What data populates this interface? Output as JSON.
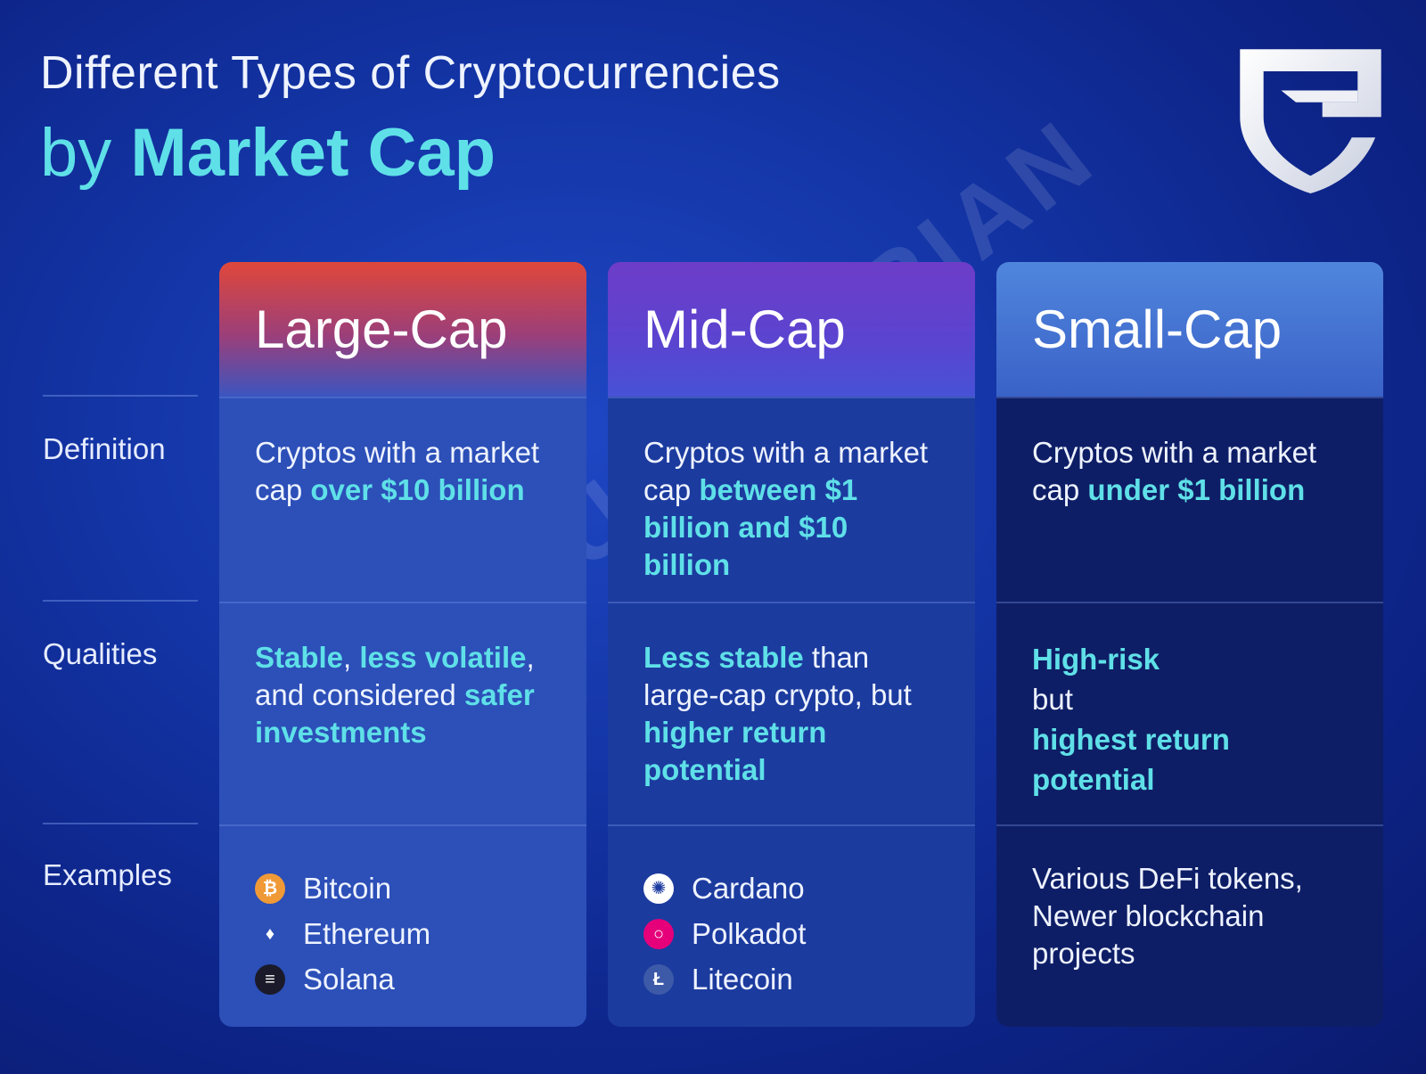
{
  "title": {
    "line1": "Different Types of Cryptocurrencies",
    "prefix": "by ",
    "highlight": "Market Cap"
  },
  "logo": {
    "name": "Guardarian",
    "icon": "shield-g-logo"
  },
  "watermark": "GUARDARIAN",
  "row_labels": [
    "Definition",
    "Qualities",
    "Examples"
  ],
  "colors": {
    "highlight": "#5fe0e8",
    "background": "#1436a8",
    "large_cap_header": "#e0473a",
    "mid_cap_header": "#6d3dc8",
    "small_cap_header": "#4f86dc"
  },
  "columns": [
    {
      "title": "Large-Cap",
      "definition": [
        {
          "t": "Cryptos with a market cap ",
          "h": false
        },
        {
          "t": "over $10 billion",
          "h": true
        }
      ],
      "qualities": [
        {
          "t": "Stable",
          "h": true
        },
        {
          "t": ", ",
          "h": false
        },
        {
          "t": "less volatile",
          "h": true
        },
        {
          "t": ", and considered ",
          "h": false
        },
        {
          "t": "safer investments",
          "h": true
        }
      ],
      "examples": [
        {
          "name": "Bitcoin",
          "icon": "bitcoin-icon",
          "color": "#f09a37",
          "glyph": "₿"
        },
        {
          "name": "Ethereum",
          "icon": "ethereum-icon",
          "color": "transparent",
          "glyph": "♦"
        },
        {
          "name": "Solana",
          "icon": "solana-icon",
          "color": "#1a1a2a",
          "glyph": "≡"
        }
      ]
    },
    {
      "title": "Mid-Cap",
      "definition": [
        {
          "t": "Cryptos with a market cap ",
          "h": false
        },
        {
          "t": "between $1 billion and $10 billion",
          "h": true
        }
      ],
      "qualities": [
        {
          "t": "Less stable",
          "h": true
        },
        {
          "t": " than large-cap crypto, but ",
          "h": false
        },
        {
          "t": "higher return potential",
          "h": true
        }
      ],
      "examples": [
        {
          "name": "Cardano",
          "icon": "cardano-icon",
          "color": "#ffffff",
          "glyph": "✺"
        },
        {
          "name": "Polkadot",
          "icon": "polkadot-icon",
          "color": "#e6007a",
          "glyph": "○"
        },
        {
          "name": "Litecoin",
          "icon": "litecoin-icon",
          "color": "#3d5aa8",
          "glyph": "Ł"
        }
      ]
    },
    {
      "title": "Small-Cap",
      "definition": [
        {
          "t": "Cryptos with a market cap ",
          "h": false
        },
        {
          "t": "under $1 billion",
          "h": true
        }
      ],
      "qualities": [
        {
          "t": "High-risk",
          "h": true,
          "br": true
        },
        {
          "t": "but",
          "h": false,
          "br": true
        },
        {
          "t": "highest return potential",
          "h": true
        }
      ],
      "examples_text": "Various DeFi tokens, Newer blockchain projects"
    }
  ]
}
